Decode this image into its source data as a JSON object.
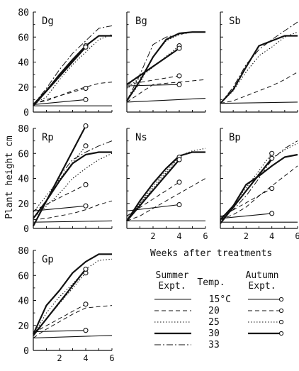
{
  "figure": {
    "ylabel": "Plant height  cm",
    "xlabel": "Weeks after treatments",
    "legend": {
      "summer_header": [
        "Summer",
        "Expt."
      ],
      "temp_header": "Temp.",
      "autumn_header": [
        "Autumn",
        "Expt."
      ],
      "temps": [
        "15°C",
        "20",
        "25",
        "30",
        "33"
      ]
    }
  },
  "chart_data": [
    {
      "type": "line",
      "panel": "Dg",
      "title": "Dg",
      "xlim": [
        0,
        6
      ],
      "ylim": [
        0,
        80
      ],
      "yticks": [
        0,
        20,
        40,
        60,
        80
      ],
      "xticks": [],
      "series": [
        {
          "exp": "summer",
          "temp": "15",
          "x": [
            0,
            6
          ],
          "y": [
            5,
            5
          ]
        },
        {
          "exp": "summer",
          "temp": "20",
          "x": [
            0,
            1,
            2,
            3,
            4,
            5,
            6
          ],
          "y": [
            7,
            9,
            13,
            17,
            20,
            23,
            24
          ]
        },
        {
          "exp": "summer",
          "temp": "25",
          "x": [
            0,
            1,
            2,
            3,
            4,
            5,
            6
          ],
          "y": [
            7,
            12,
            26,
            38,
            48,
            58,
            62
          ]
        },
        {
          "exp": "summer",
          "temp": "30",
          "x": [
            0,
            1,
            2,
            3,
            4,
            5,
            6
          ],
          "y": [
            6,
            17,
            30,
            42,
            53,
            61,
            61
          ]
        },
        {
          "exp": "summer",
          "temp": "33",
          "x": [
            0,
            1,
            2,
            3,
            4,
            5,
            6
          ],
          "y": [
            6,
            19,
            34,
            47,
            57,
            67,
            69
          ]
        },
        {
          "exp": "autumn",
          "temp": "15",
          "x": [
            0,
            4
          ],
          "y": [
            6,
            10
          ]
        },
        {
          "exp": "autumn",
          "temp": "20",
          "x": [
            0,
            4
          ],
          "y": [
            7,
            19
          ]
        },
        {
          "exp": "autumn",
          "temp": "25",
          "x": [
            0,
            4
          ],
          "y": [
            6,
            53
          ]
        },
        {
          "exp": "autumn",
          "temp": "30",
          "x": [
            0,
            4
          ],
          "y": [
            5,
            52
          ]
        }
      ]
    },
    {
      "type": "line",
      "panel": "Bg",
      "title": "Bg",
      "xlim": [
        0,
        6
      ],
      "ylim": [
        0,
        80
      ],
      "yticks": [],
      "xticks": [],
      "series": [
        {
          "exp": "summer",
          "temp": "15",
          "x": [
            0,
            6
          ],
          "y": [
            8,
            11
          ]
        },
        {
          "exp": "summer",
          "temp": "20",
          "x": [
            0,
            2,
            4,
            6
          ],
          "y": [
            8,
            22,
            24,
            26
          ]
        },
        {
          "exp": "summer",
          "temp": "25",
          "x": [
            0,
            1,
            2,
            3,
            4,
            5,
            6
          ],
          "y": [
            9,
            23,
            44,
            57,
            62,
            64,
            64
          ]
        },
        {
          "exp": "summer",
          "temp": "30",
          "x": [
            0,
            1,
            2,
            3,
            4,
            5,
            6
          ],
          "y": [
            9,
            25,
            44,
            58,
            63,
            64,
            64
          ]
        },
        {
          "exp": "summer",
          "temp": "33",
          "x": [
            0,
            1,
            2,
            3,
            4,
            5,
            6
          ],
          "y": [
            9,
            30,
            54,
            60,
            62,
            64,
            64
          ]
        },
        {
          "exp": "autumn",
          "temp": "15",
          "x": [
            0,
            4
          ],
          "y": [
            21,
            22
          ]
        },
        {
          "exp": "autumn",
          "temp": "20",
          "x": [
            0,
            4
          ],
          "y": [
            22,
            29
          ]
        },
        {
          "exp": "autumn",
          "temp": "25",
          "x": [
            0,
            4
          ],
          "y": [
            19,
            53
          ]
        },
        {
          "exp": "autumn",
          "temp": "30",
          "x": [
            0,
            4
          ],
          "y": [
            22,
            51
          ]
        }
      ]
    },
    {
      "type": "line",
      "panel": "Sb",
      "title": "Sb",
      "xlim": [
        0,
        6
      ],
      "ylim": [
        0,
        80
      ],
      "yticks": [],
      "xticks": [],
      "series": [
        {
          "exp": "summer",
          "temp": "15",
          "x": [
            0,
            6
          ],
          "y": [
            7,
            8
          ]
        },
        {
          "exp": "summer",
          "temp": "20",
          "x": [
            0,
            1,
            2,
            3,
            4,
            5,
            6
          ],
          "y": [
            7,
            9,
            13,
            17,
            21,
            26,
            32
          ]
        },
        {
          "exp": "summer",
          "temp": "25",
          "x": [
            0,
            1,
            2,
            3,
            4,
            5,
            6
          ],
          "y": [
            7,
            17,
            32,
            45,
            52,
            60,
            64
          ]
        },
        {
          "exp": "summer",
          "temp": "30",
          "x": [
            0,
            1,
            2,
            3,
            4,
            5,
            6
          ],
          "y": [
            7,
            18,
            36,
            53,
            57,
            61,
            61
          ]
        },
        {
          "exp": "summer",
          "temp": "33",
          "x": [
            0,
            1,
            2,
            3,
            4,
            5,
            6
          ],
          "y": [
            7,
            20,
            38,
            50,
            58,
            65,
            72
          ]
        }
      ]
    },
    {
      "type": "line",
      "panel": "Rp",
      "title": "Rp",
      "xlim": [
        0,
        6
      ],
      "ylim": [
        0,
        80
      ],
      "yticks": [
        0,
        20,
        40,
        60,
        80
      ],
      "xticks": [],
      "series": [
        {
          "exp": "summer",
          "temp": "15",
          "x": [
            0,
            6
          ],
          "y": [
            5,
            6
          ]
        },
        {
          "exp": "summer",
          "temp": "20",
          "x": [
            0,
            1,
            2,
            3,
            4,
            5,
            6
          ],
          "y": [
            7,
            8,
            10,
            12,
            15,
            19,
            22
          ]
        },
        {
          "exp": "summer",
          "temp": "25",
          "x": [
            0,
            1,
            2,
            3,
            4,
            5,
            6
          ],
          "y": [
            8,
            18,
            28,
            40,
            48,
            55,
            60
          ]
        },
        {
          "exp": "summer",
          "temp": "30",
          "x": [
            0,
            1,
            2,
            3,
            4,
            5,
            6
          ],
          "y": [
            8,
            22,
            38,
            52,
            59,
            61,
            61
          ]
        },
        {
          "exp": "summer",
          "temp": "33",
          "x": [
            0,
            1,
            2,
            3,
            4,
            5,
            6
          ],
          "y": [
            8,
            22,
            42,
            55,
            61,
            66,
            70
          ]
        },
        {
          "exp": "autumn",
          "temp": "15",
          "x": [
            0,
            4
          ],
          "y": [
            14,
            18
          ]
        },
        {
          "exp": "autumn",
          "temp": "20",
          "x": [
            0,
            4
          ],
          "y": [
            14,
            35
          ]
        },
        {
          "exp": "autumn",
          "temp": "25",
          "x": [
            0,
            4
          ],
          "y": [
            13,
            66
          ]
        },
        {
          "exp": "autumn",
          "temp": "30",
          "x": [
            0,
            4
          ],
          "y": [
            2,
            82
          ]
        }
      ]
    },
    {
      "type": "line",
      "panel": "Ns",
      "title": "Ns",
      "xlim": [
        0,
        6
      ],
      "ylim": [
        0,
        80
      ],
      "yticks": [],
      "xticks": [
        2,
        4,
        6
      ],
      "series": [
        {
          "exp": "summer",
          "temp": "15",
          "x": [
            0,
            6
          ],
          "y": [
            6,
            6
          ]
        },
        {
          "exp": "summer",
          "temp": "20",
          "x": [
            0,
            1,
            2,
            3,
            4,
            5,
            6
          ],
          "y": [
            6,
            10,
            16,
            22,
            28,
            34,
            40
          ]
        },
        {
          "exp": "summer",
          "temp": "25",
          "x": [
            0,
            1,
            2,
            3,
            4,
            5,
            6
          ],
          "y": [
            6,
            20,
            34,
            46,
            58,
            62,
            64
          ]
        },
        {
          "exp": "summer",
          "temp": "30",
          "x": [
            0,
            1,
            2,
            3,
            4,
            5,
            6
          ],
          "y": [
            6,
            22,
            36,
            48,
            58,
            61,
            61
          ]
        },
        {
          "exp": "autumn",
          "temp": "15",
          "x": [
            0,
            4
          ],
          "y": [
            14,
            19
          ]
        },
        {
          "exp": "autumn",
          "temp": "20",
          "x": [
            0,
            4
          ],
          "y": [
            10,
            37
          ]
        },
        {
          "exp": "autumn",
          "temp": "25",
          "x": [
            0,
            4
          ],
          "y": [
            7,
            57
          ]
        },
        {
          "exp": "autumn",
          "temp": "30",
          "x": [
            0,
            4
          ],
          "y": [
            6,
            55
          ]
        }
      ]
    },
    {
      "type": "line",
      "panel": "Bp",
      "title": "Bp",
      "xlim": [
        0,
        6
      ],
      "ylim": [
        0,
        80
      ],
      "yticks": [],
      "xticks": [
        2,
        4,
        6
      ],
      "series": [
        {
          "exp": "summer",
          "temp": "15",
          "x": [
            0,
            6
          ],
          "y": [
            5,
            5
          ]
        },
        {
          "exp": "summer",
          "temp": "20",
          "x": [
            0,
            1,
            2,
            3,
            4,
            5,
            6
          ],
          "y": [
            7,
            11,
            17,
            26,
            34,
            42,
            50
          ]
        },
        {
          "exp": "summer",
          "temp": "25",
          "x": [
            0,
            1,
            2,
            3,
            4,
            5,
            6
          ],
          "y": [
            6,
            16,
            30,
            44,
            56,
            63,
            68
          ]
        },
        {
          "exp": "summer",
          "temp": "30",
          "x": [
            0,
            1,
            2,
            3,
            4,
            5,
            6
          ],
          "y": [
            7,
            18,
            35,
            42,
            50,
            57,
            59
          ]
        },
        {
          "exp": "summer",
          "temp": "33",
          "x": [
            0,
            1,
            2,
            3,
            4,
            5,
            6
          ],
          "y": [
            8,
            15,
            26,
            40,
            55,
            64,
            70
          ]
        },
        {
          "exp": "autumn",
          "temp": "15",
          "x": [
            0,
            4
          ],
          "y": [
            8,
            12
          ]
        },
        {
          "exp": "autumn",
          "temp": "20",
          "x": [
            0,
            4
          ],
          "y": [
            9,
            32
          ]
        },
        {
          "exp": "autumn",
          "temp": "25",
          "x": [
            0,
            4
          ],
          "y": [
            5,
            60
          ]
        },
        {
          "exp": "autumn",
          "temp": "30",
          "x": [
            0,
            4
          ],
          "y": [
            4,
            56
          ]
        }
      ]
    },
    {
      "type": "line",
      "panel": "Gp",
      "title": "Gp",
      "xlim": [
        0,
        6
      ],
      "ylim": [
        0,
        80
      ],
      "yticks": [
        0,
        20,
        40,
        60,
        80
      ],
      "xticks": [
        2,
        4,
        6
      ],
      "series": [
        {
          "exp": "summer",
          "temp": "15",
          "x": [
            0,
            6
          ],
          "y": [
            10,
            12
          ]
        },
        {
          "exp": "summer",
          "temp": "20",
          "x": [
            0,
            1,
            2,
            3,
            4,
            5,
            6
          ],
          "y": [
            10,
            17,
            23,
            29,
            34,
            35,
            36
          ]
        },
        {
          "exp": "summer",
          "temp": "25",
          "x": [
            0,
            1,
            2,
            3,
            4,
            5,
            6
          ],
          "y": [
            12,
            30,
            43,
            53,
            65,
            72,
            73
          ]
        },
        {
          "exp": "summer",
          "temp": "30",
          "x": [
            0,
            1,
            2,
            3,
            4,
            5,
            6
          ],
          "y": [
            13,
            36,
            48,
            62,
            71,
            77,
            77
          ]
        },
        {
          "exp": "autumn",
          "temp": "15",
          "x": [
            0,
            4
          ],
          "y": [
            15,
            16
          ]
        },
        {
          "exp": "autumn",
          "temp": "20",
          "x": [
            0,
            4
          ],
          "y": [
            14,
            37
          ]
        },
        {
          "exp": "autumn",
          "temp": "25",
          "x": [
            0,
            4
          ],
          "y": [
            13,
            62
          ]
        },
        {
          "exp": "autumn",
          "temp": "30",
          "x": [
            0,
            4
          ],
          "y": [
            12,
            65
          ]
        }
      ]
    }
  ]
}
